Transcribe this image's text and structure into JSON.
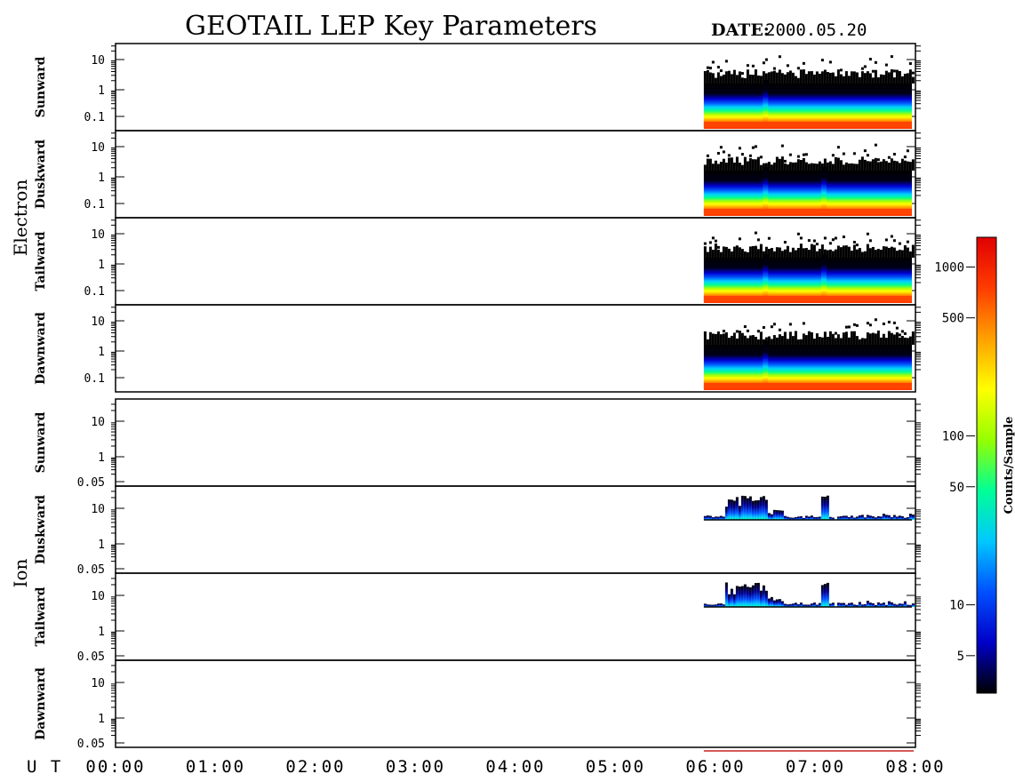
{
  "header": {
    "title": "GEOTAIL LEP Key Parameters",
    "date_label": "DATE:",
    "date_value": "2000.05.20"
  },
  "chart_data": {
    "type": "heatmap",
    "x_axis": {
      "label": "U T",
      "range": [
        "00:00",
        "08:00"
      ],
      "ticks": [
        "00:00",
        "01:00",
        "02:00",
        "03:00",
        "04:00",
        "05:00",
        "06:00",
        "07:00",
        "08:00"
      ]
    },
    "data_start_ut": "05:53",
    "groups": [
      {
        "name": "Electron",
        "y_scale": "log",
        "y_ticks": [
          "10",
          "1",
          "0.1"
        ],
        "panels": [
          {
            "name": "Sunward",
            "spikes_ut": [
              "06:30"
            ]
          },
          {
            "name": "Duskward",
            "spikes_ut": [
              "06:30",
              "07:05"
            ]
          },
          {
            "name": "Tailward",
            "spikes_ut": [
              "06:30",
              "07:05"
            ]
          },
          {
            "name": "Dawnward",
            "spikes_ut": [
              "06:30"
            ]
          }
        ]
      },
      {
        "name": "Ion",
        "y_scale": "log",
        "y_ticks": [
          "10",
          "1",
          "0.05"
        ],
        "panels": [
          {
            "name": "Sunward",
            "activity": "none"
          },
          {
            "name": "Duskward",
            "activity": "bursts",
            "bursts_ut": [
              "06:05-06:25",
              "07:05"
            ]
          },
          {
            "name": "Tailward",
            "activity": "bursts",
            "bursts_ut": [
              "06:05-06:25",
              "07:05"
            ]
          },
          {
            "name": "Dawnward",
            "activity": "none"
          }
        ]
      }
    ],
    "colorbar": {
      "label": "Counts/Sample",
      "scale": "log",
      "ticks": [
        5,
        10,
        50,
        100,
        500,
        1000
      ],
      "range": [
        3,
        1500
      ],
      "colors": [
        "#000000",
        "#0000c8",
        "#0050ff",
        "#00c8ff",
        "#00ff96",
        "#96ff00",
        "#ffff00",
        "#ffa000",
        "#ff3c00",
        "#e00000"
      ]
    }
  }
}
